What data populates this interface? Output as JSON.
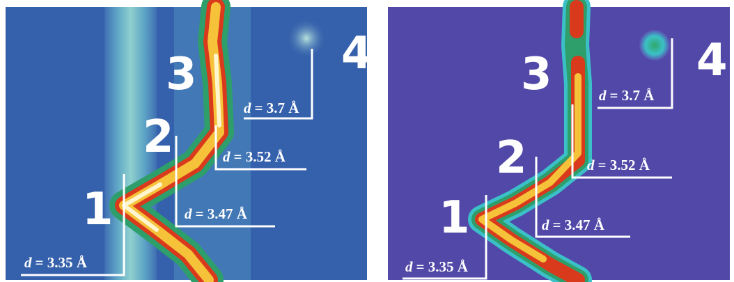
{
  "panels": [
    {
      "markers": [
        "1",
        "2",
        "3",
        "4"
      ],
      "distances": [
        {
          "symbol": "d",
          "text": "= 3.35 Å"
        },
        {
          "symbol": "d",
          "text": "= 3.47 Å"
        },
        {
          "symbol": "d",
          "text": "= 3.52 Å"
        },
        {
          "symbol": "d",
          "text": "= 3.7 Å"
        }
      ]
    },
    {
      "markers": [
        "1",
        "2",
        "3",
        "4"
      ],
      "distances": [
        {
          "symbol": "d",
          "text": "= 3.35 Å"
        },
        {
          "symbol": "d",
          "text": "= 3.47 Å"
        },
        {
          "symbol": "d",
          "text": "= 3.52 Å"
        },
        {
          "symbol": "d",
          "text": "= 3.7 Å"
        }
      ]
    }
  ]
}
